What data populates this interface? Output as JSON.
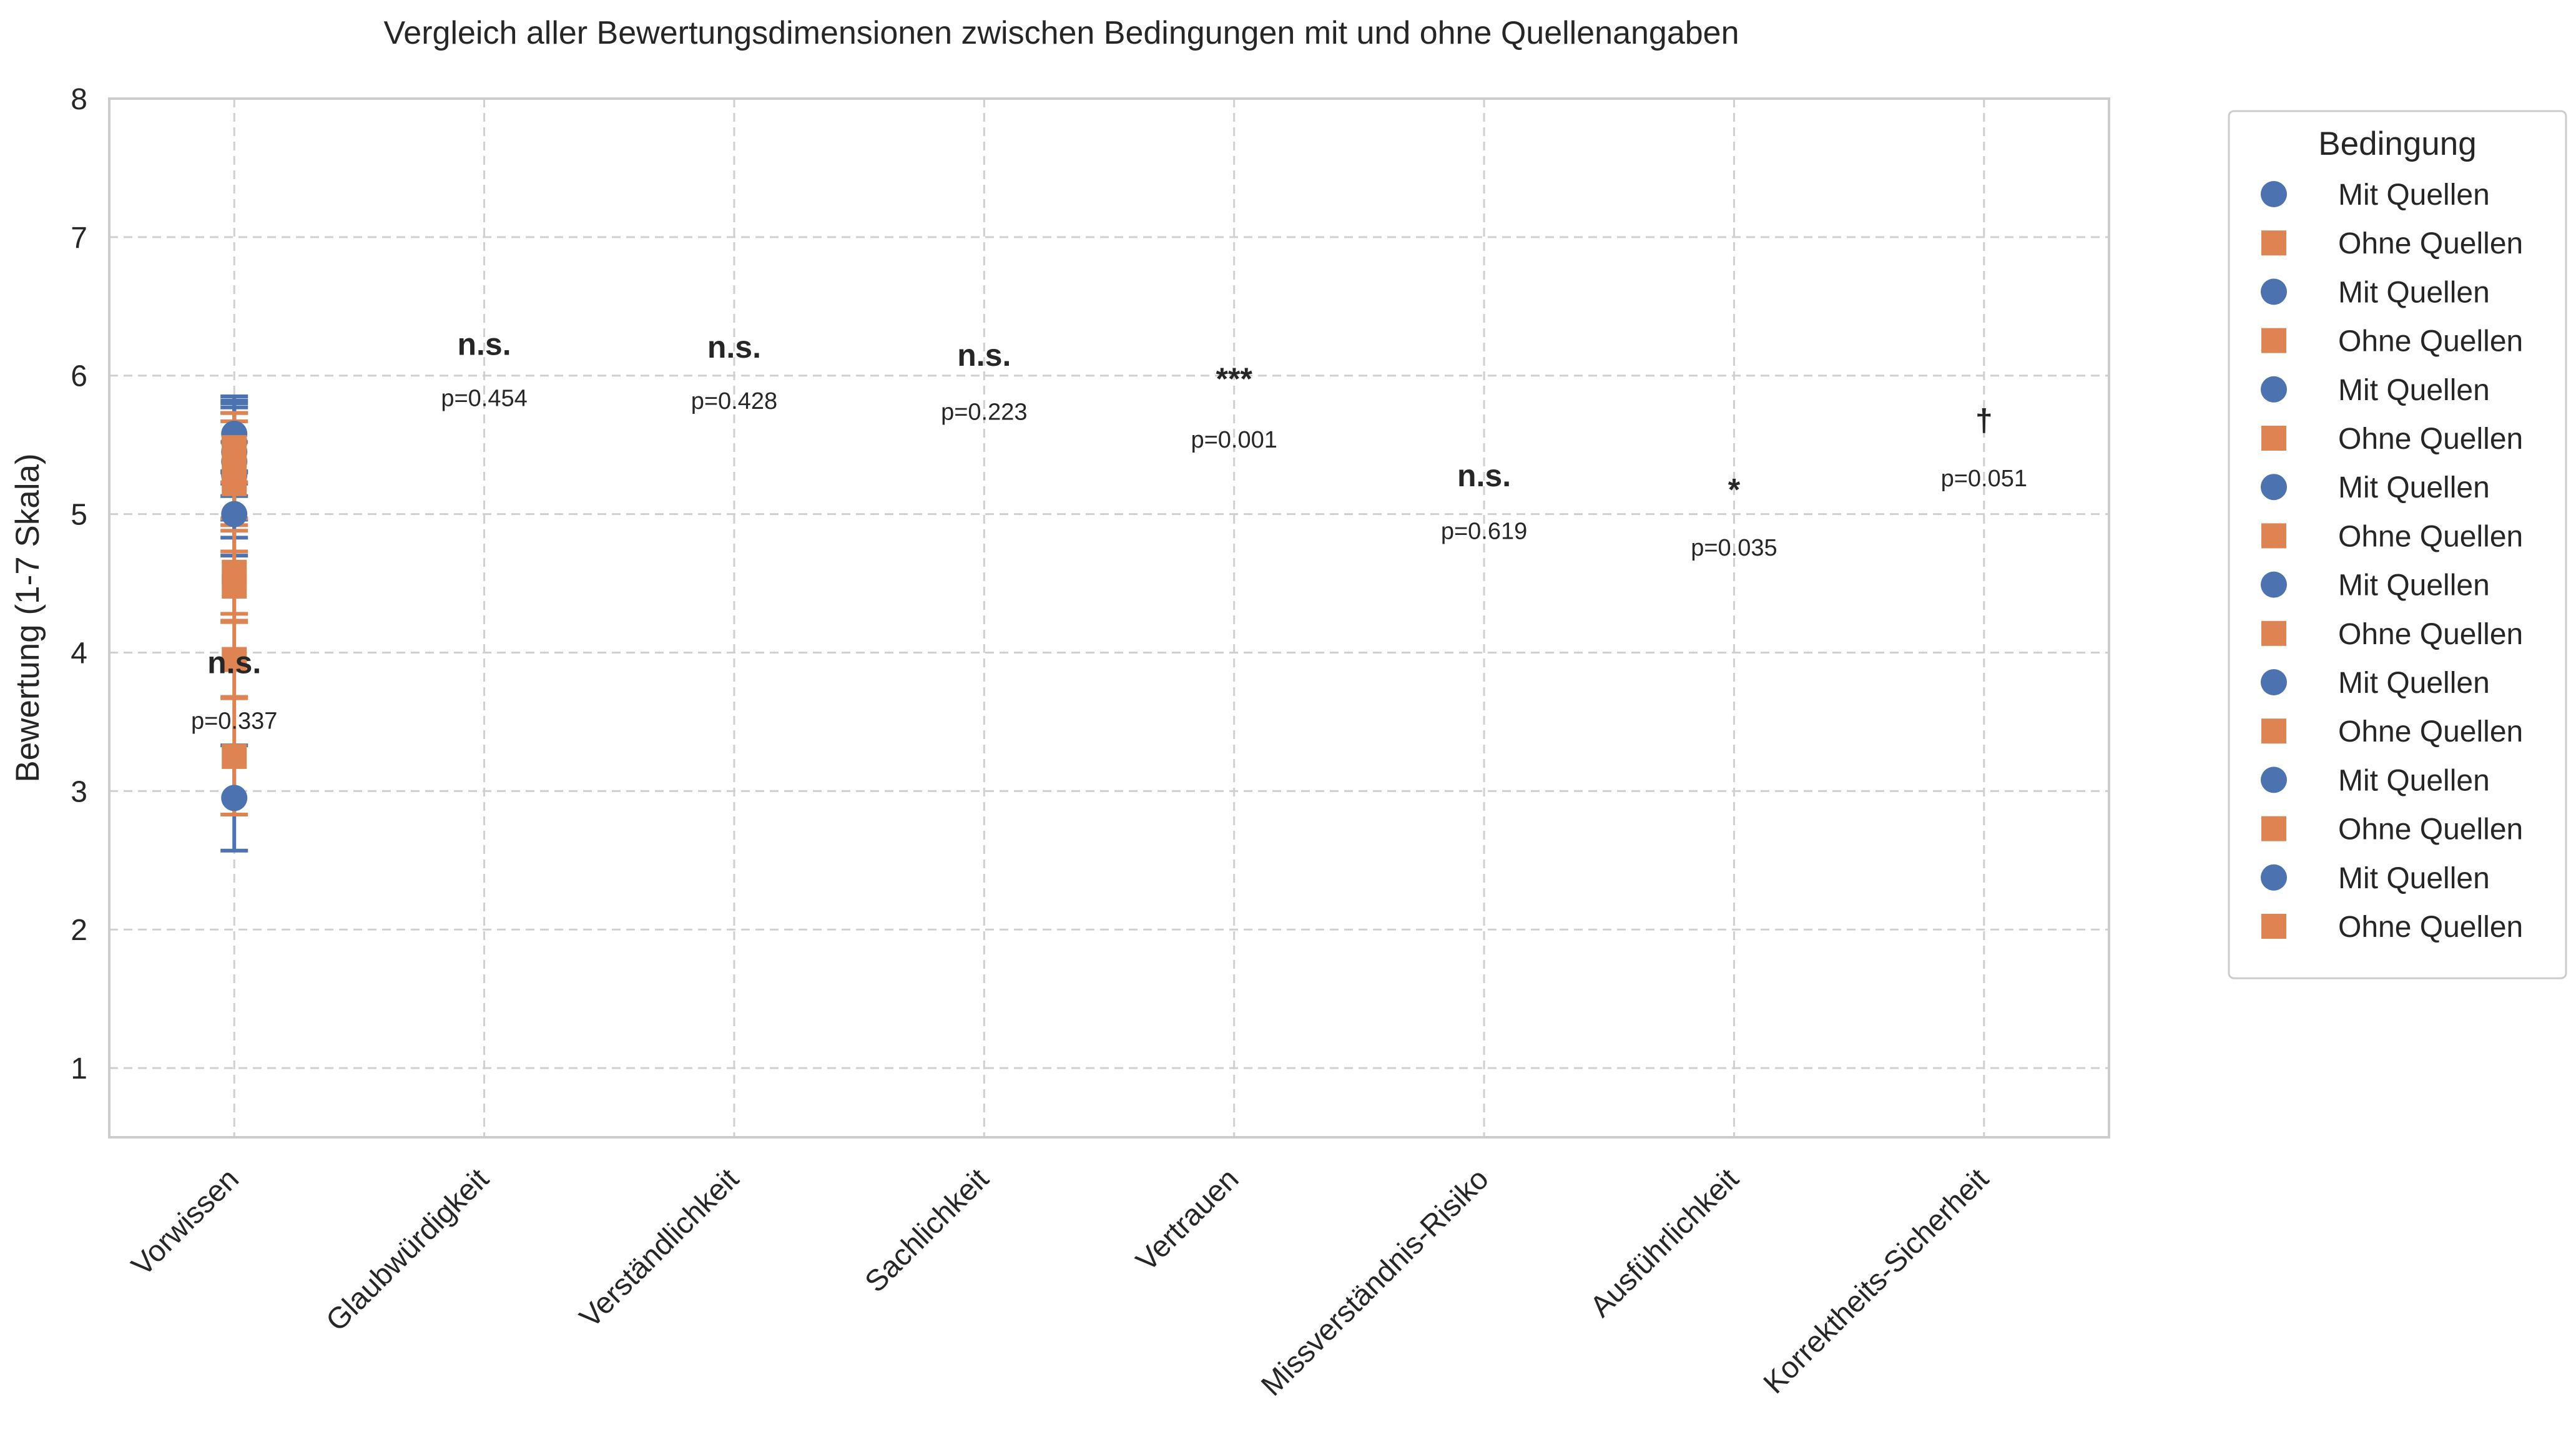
{
  "chart_data": {
    "type": "scatter",
    "title": "Vergleich aller Bewertungsdimensionen zwischen Bedingungen mit und ohne Quellenangaben",
    "ylabel": "Bewertung (1-7 Skala)",
    "xlabel": "",
    "ylim": [
      0.5,
      8
    ],
    "yticks": [
      "1",
      "2",
      "3",
      "4",
      "5",
      "6",
      "7",
      "8"
    ],
    "grid": true,
    "legend_position": "outside-right",
    "categories": [
      "Vorwissen",
      "Glaubwürdigkeit",
      "Verständlichkeit",
      "Sachlichkeit",
      "Vertrauen",
      "Missverständnis-Risiko",
      "Ausführlichkeit",
      "Korrektheits-Sicherheit"
    ],
    "series": [
      {
        "name": "Mit Quellen",
        "color": "#4c72b0",
        "marker": "circle",
        "points": [
          {
            "x": "Vorwissen",
            "y": 2.95,
            "err": 0.38
          },
          {
            "x": "Vorwissen",
            "y": 5.0,
            "err": 0.3
          },
          {
            "x": "Vorwissen",
            "y": 5.28,
            "err": 0.45
          },
          {
            "x": "Vorwissen",
            "y": 5.38,
            "err": 0.42
          },
          {
            "x": "Vorwissen",
            "y": 5.45,
            "err": 0.32
          },
          {
            "x": "Vorwissen",
            "y": 5.52,
            "err": 0.3
          },
          {
            "x": "Vorwissen",
            "y": 5.58,
            "err": 0.27
          }
        ]
      },
      {
        "name": "Ohne Quellen",
        "color": "#dd8452",
        "marker": "square",
        "points": [
          {
            "x": "Vorwissen",
            "y": 3.25,
            "err": 0.42
          },
          {
            "x": "Vorwissen",
            "y": 3.95,
            "err": 0.27
          },
          {
            "x": "Vorwissen",
            "y": 4.48,
            "err": 0.25
          },
          {
            "x": "Vorwissen",
            "y": 4.58,
            "err": 0.3
          },
          {
            "x": "Vorwissen",
            "y": 5.22,
            "err": 0.3
          },
          {
            "x": "Vorwissen",
            "y": 5.32,
            "err": 0.35
          },
          {
            "x": "Vorwissen",
            "y": 5.48,
            "err": 0.25
          }
        ]
      }
    ],
    "annotations": [
      {
        "category": "Vorwissen",
        "marker": "n.s.",
        "p": "p=0.337",
        "y_marker": 3.85,
        "y_p": 3.45
      },
      {
        "category": "Glaubwürdigkeit",
        "marker": "n.s.",
        "p": "p=0.454",
        "y_marker": 6.15,
        "y_p": 5.78
      },
      {
        "category": "Verständlichkeit",
        "marker": "n.s.",
        "p": "p=0.428",
        "y_marker": 6.13,
        "y_p": 5.76
      },
      {
        "category": "Sachlichkeit",
        "marker": "n.s.",
        "p": "p=0.223",
        "y_marker": 6.07,
        "y_p": 5.68
      },
      {
        "category": "Vertrauen",
        "marker": "***",
        "p": "p=0.001",
        "y_marker": 5.9,
        "y_p": 5.48
      },
      {
        "category": "Missverständnis-Risiko",
        "marker": "n.s.",
        "p": "p=0.619",
        "y_marker": 5.2,
        "y_p": 4.82
      },
      {
        "category": "Ausführlichkeit",
        "marker": "*",
        "p": "p=0.035",
        "y_marker": 5.1,
        "y_p": 4.7
      },
      {
        "category": "Korrektheits-Sicherheit",
        "marker": "†",
        "p": "p=0.051",
        "y_marker": 5.6,
        "y_p": 5.2
      }
    ],
    "legend": {
      "title": "Bedingung",
      "entries": [
        {
          "label": "Mit Quellen",
          "series": 0
        },
        {
          "label": "Ohne Quellen",
          "series": 1
        },
        {
          "label": "Mit Quellen",
          "series": 0
        },
        {
          "label": "Ohne Quellen",
          "series": 1
        },
        {
          "label": "Mit Quellen",
          "series": 0
        },
        {
          "label": "Ohne Quellen",
          "series": 1
        },
        {
          "label": "Mit Quellen",
          "series": 0
        },
        {
          "label": "Ohne Quellen",
          "series": 1
        },
        {
          "label": "Mit Quellen",
          "series": 0
        },
        {
          "label": "Ohne Quellen",
          "series": 1
        },
        {
          "label": "Mit Quellen",
          "series": 0
        },
        {
          "label": "Ohne Quellen",
          "series": 1
        },
        {
          "label": "Mit Quellen",
          "series": 0
        },
        {
          "label": "Ohne Quellen",
          "series": 1
        },
        {
          "label": "Mit Quellen",
          "series": 0
        },
        {
          "label": "Ohne Quellen",
          "series": 1
        }
      ]
    }
  }
}
